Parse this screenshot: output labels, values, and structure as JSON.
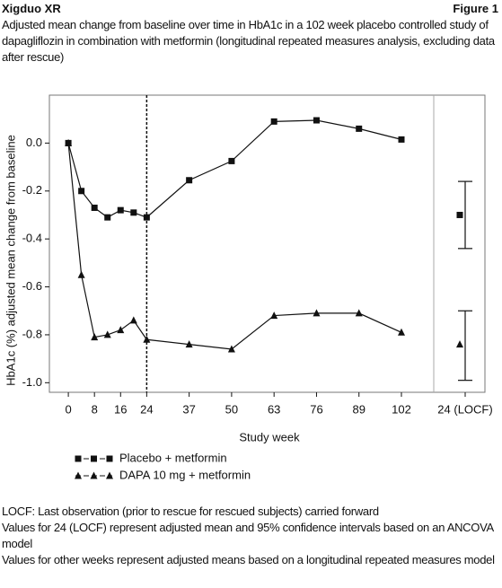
{
  "header": {
    "left": "Xigduo XR",
    "right": "Figure 1"
  },
  "chart_data": {
    "type": "line",
    "title": "Adjusted mean change from baseline over time in HbA1c in a 102 week placebo controlled study of dapagliflozin in combination with metformin (longitudinal repeated measures analysis, excluding data after rescue)",
    "x_label": "Study week",
    "y_label": "HbA1c (%) adjusted mean change from baseline",
    "x": [
      0,
      4,
      8,
      12,
      16,
      20,
      24,
      37,
      50,
      63,
      76,
      89,
      102
    ],
    "xlim": [
      -5.8,
      111.9
    ],
    "xticks": [
      0,
      8,
      16,
      24,
      37,
      50,
      63,
      76,
      89,
      102
    ],
    "ylim": [
      -1.04,
      0.2
    ],
    "yticks": [
      {
        "value": 0,
        "label": "0.0"
      },
      -0.2,
      -0.4,
      -0.6,
      -0.8,
      {
        "value": -1,
        "label": "-1.0"
      }
    ],
    "vline": 24,
    "series": [
      {
        "name": "Placebo + metformin",
        "color": "#111111",
        "marker": "square",
        "values": [
          0.0,
          -0.2,
          -0.27,
          -0.31,
          -0.28,
          -0.29,
          -0.31,
          -0.155,
          -0.075,
          0.09,
          0.095,
          0.06,
          0.015
        ]
      },
      {
        "name": "DAPA 10 mg + metformin",
        "color": "#111111",
        "marker": "triangle",
        "values": [
          0.0,
          -0.55,
          -0.81,
          -0.8,
          -0.78,
          -0.74,
          -0.82,
          -0.84,
          -0.86,
          -0.72,
          -0.71,
          -0.71,
          -0.79
        ]
      }
    ],
    "locf": {
      "label": "24 (LOCF)",
      "values": [
        -0.3,
        -0.84
      ],
      "ci": [
        [
          -0.44,
          -0.16
        ],
        [
          -0.99,
          -0.7
        ]
      ]
    }
  },
  "notes": [
    "LOCF: Last observation (prior to rescue for rescued subjects) carried forward",
    "Values for 24 (LOCF) represent adjusted mean and 95% confidence intervals based on an ANCOVA model",
    "Values for other weeks represent adjusted means based on a longitudinal repeated measures model"
  ]
}
